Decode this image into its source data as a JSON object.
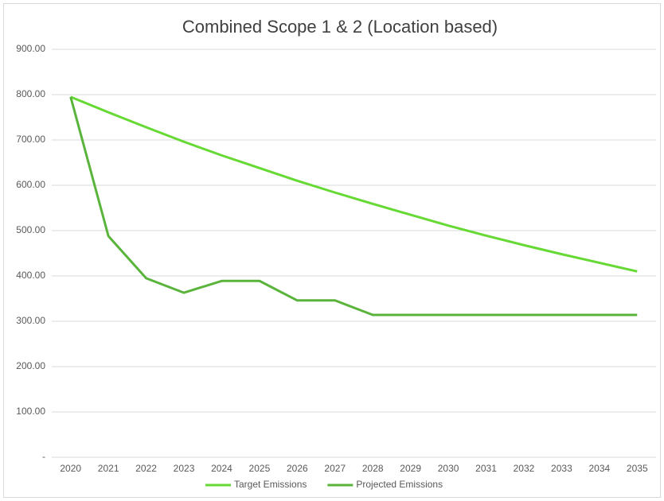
{
  "chart_data": {
    "type": "line",
    "title": "Combined Scope 1 & 2 (Location based)",
    "categories": [
      "2020",
      "2021",
      "2022",
      "2023",
      "2024",
      "2025",
      "2026",
      "2027",
      "2028",
      "2029",
      "2030",
      "2031",
      "2032",
      "2033",
      "2034",
      "2035"
    ],
    "series": [
      {
        "name": "Target Emissions",
        "color": "#66d934",
        "values": [
          795,
          761,
          728,
          696,
          666,
          638,
          610,
          584,
          559,
          535,
          511,
          489,
          468,
          448,
          429,
          410
        ]
      },
      {
        "name": "Projected Emissions",
        "color": "#5ab43c",
        "values": [
          795,
          488,
          395,
          363,
          389,
          389,
          346,
          346,
          314,
          314,
          314,
          314,
          314,
          314,
          314,
          314
        ]
      }
    ],
    "ylim": [
      0,
      900
    ],
    "yticks": [
      {
        "value": 0,
        "label": "-"
      },
      {
        "value": 100,
        "label": "100.00"
      },
      {
        "value": 200,
        "label": "200.00"
      },
      {
        "value": 300,
        "label": "300.00"
      },
      {
        "value": 400,
        "label": "400.00"
      },
      {
        "value": 500,
        "label": "500.00"
      },
      {
        "value": 600,
        "label": "600.00"
      },
      {
        "value": 700,
        "label": "700.00"
      },
      {
        "value": 800,
        "label": "800.00"
      },
      {
        "value": 900,
        "label": "900.00"
      }
    ],
    "grid": true,
    "legend": "bottom"
  }
}
